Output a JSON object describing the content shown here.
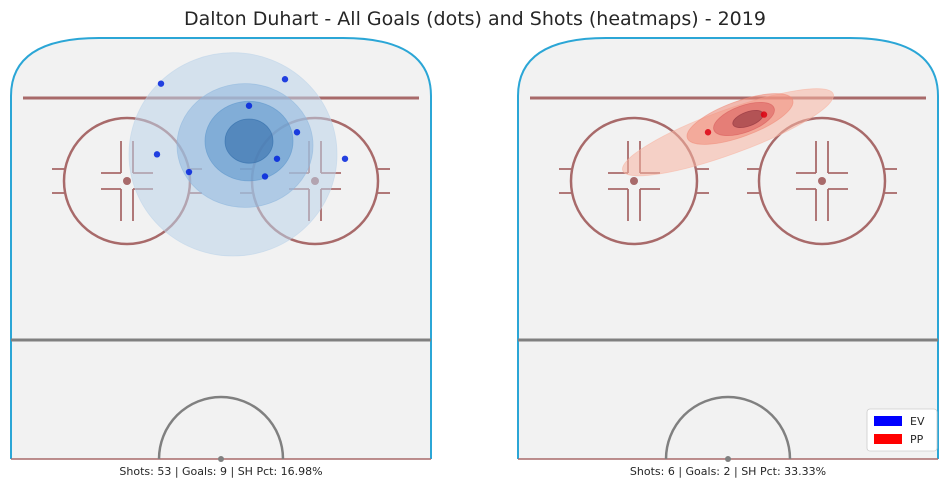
{
  "title": "Dalton Duhart - All Goals (dots) and Shots (heatmaps) - 2019",
  "colors": {
    "ev": "#0000ff",
    "pp": "#ff0000",
    "ice": "#f2f2f2",
    "boards": "#2ba6d6",
    "red_line": "#a86a6a",
    "center_line": "#808080"
  },
  "chart_data": [
    {
      "type": "scatter",
      "panel": "left",
      "strength": "EV",
      "footer": "Shots: 53 | Goals: 9 | SH Pct: 16.98%",
      "shots": 53,
      "goals": 9,
      "sh_pct": "16.98%",
      "goal_points": [
        {
          "x": -15,
          "y": 83
        },
        {
          "x": 7,
          "y": 78
        },
        {
          "x": 16,
          "y": 84
        },
        {
          "x": 14,
          "y": 66
        },
        {
          "x": 11,
          "y": 62
        },
        {
          "x": -8,
          "y": 63
        },
        {
          "x": -16,
          "y": 67
        },
        {
          "x": 19,
          "y": 72
        },
        {
          "x": 31,
          "y": 66
        }
      ],
      "heatmap": [
        {
          "cx": 3,
          "cy": 67,
          "rx": 26,
          "ry": 23,
          "level": 1
        },
        {
          "cx": 6,
          "cy": 69,
          "rx": 17,
          "ry": 14,
          "level": 2
        },
        {
          "cx": 7,
          "cy": 70,
          "rx": 11,
          "ry": 9,
          "level": 3
        },
        {
          "cx": 7,
          "cy": 70,
          "rx": 6,
          "ry": 5,
          "level": 4
        }
      ]
    },
    {
      "type": "scatter",
      "panel": "right",
      "strength": "PP",
      "footer": "Shots: 6 | Goals: 2 | SH Pct: 33.33%",
      "shots": 6,
      "goals": 2,
      "sh_pct": "33.33%",
      "goal_points": [
        {
          "x": 9,
          "y": 76
        },
        {
          "x": -5,
          "y": 72
        }
      ],
      "heatmap": [
        {
          "cx": 0,
          "cy": 72,
          "rx": 28,
          "ry": 5,
          "level": 1,
          "angle": -20
        },
        {
          "cx": 3,
          "cy": 75,
          "rx": 14,
          "ry": 4,
          "level": 2,
          "angle": -20
        },
        {
          "cx": 4,
          "cy": 75,
          "rx": 8,
          "ry": 3,
          "level": 3,
          "angle": -20
        },
        {
          "cx": 5,
          "cy": 75,
          "rx": 4,
          "ry": 1.6,
          "level": 4,
          "angle": -20
        }
      ]
    }
  ],
  "legend": [
    {
      "label": "EV",
      "color": "#0000ff"
    },
    {
      "label": "PP",
      "color": "#ff0000"
    }
  ]
}
